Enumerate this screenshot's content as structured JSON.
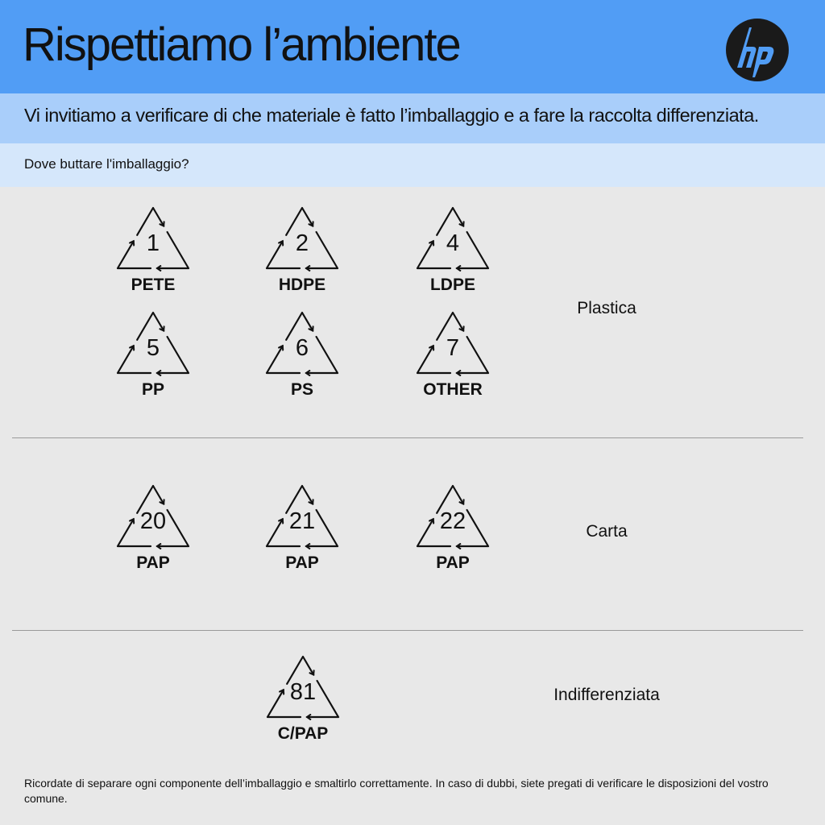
{
  "header": {
    "title": "Rispettiamo l’ambiente",
    "logo": "hp",
    "color": "#519df5"
  },
  "subtitle": "Vi invitiamo a verificare di che materiale è fatto l’imballaggio e a fare la raccolta differenziata.",
  "question": "Dove buttare l'imballaggio?",
  "groups": [
    {
      "category": "Plastica",
      "items": [
        {
          "code": "1",
          "label": "PETE"
        },
        {
          "code": "2",
          "label": "HDPE"
        },
        {
          "code": "4",
          "label": "LDPE"
        },
        {
          "code": "5",
          "label": "PP"
        },
        {
          "code": "6",
          "label": "PS"
        },
        {
          "code": "7",
          "label": "OTHER"
        }
      ]
    },
    {
      "category": "Carta",
      "items": [
        {
          "code": "20",
          "label": "PAP"
        },
        {
          "code": "21",
          "label": "PAP"
        },
        {
          "code": "22",
          "label": "PAP"
        }
      ]
    },
    {
      "category": "Indifferenziata",
      "items": [
        {
          "code": "81",
          "label": "C/PAP"
        }
      ]
    }
  ],
  "footer": "Ricordate di separare ogni componente dell’imballaggio e smaltirlo correttamente. In caso di dubbi, siete pregati di verificare le disposizioni del vostro comune."
}
